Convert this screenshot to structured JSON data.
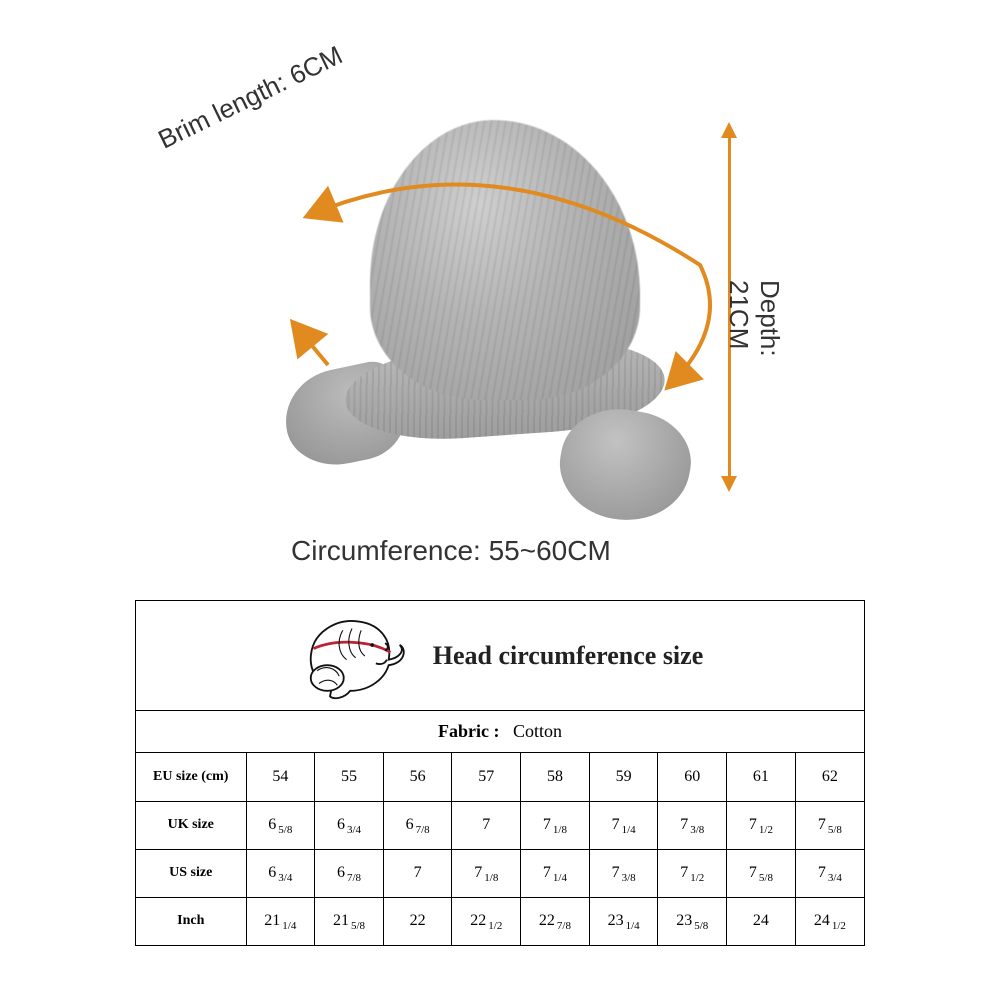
{
  "diagram": {
    "brim_label": "Brim length: 6CM",
    "depth_label": "Depth: 21CM",
    "circumference_label": "Circumference: 55~60CM",
    "arrow_color": "#e08a1f",
    "hat_color_light": "#cfcfcf",
    "hat_color_mid": "#b5b5b5",
    "hat_color_dark": "#9a9a9a",
    "label_color": "#333333",
    "label_fontsize": 26
  },
  "table": {
    "header_title": "Head circumference size",
    "fabric_label": "Fabric :",
    "fabric_value": "Cotton",
    "border_color": "#000000",
    "columns": [
      "54",
      "55",
      "56",
      "57",
      "58",
      "59",
      "60",
      "61",
      "62"
    ],
    "rows": [
      {
        "label": "EU size (cm)",
        "cells": [
          {
            "whole": "54"
          },
          {
            "whole": "55"
          },
          {
            "whole": "56"
          },
          {
            "whole": "57"
          },
          {
            "whole": "58"
          },
          {
            "whole": "59"
          },
          {
            "whole": "60"
          },
          {
            "whole": "61"
          },
          {
            "whole": "62"
          }
        ]
      },
      {
        "label": "UK size",
        "cells": [
          {
            "whole": "6",
            "frac": "5/8"
          },
          {
            "whole": "6",
            "frac": "3/4"
          },
          {
            "whole": "6",
            "frac": "7/8"
          },
          {
            "whole": "7"
          },
          {
            "whole": "7",
            "frac": "1/8"
          },
          {
            "whole": "7",
            "frac": "1/4"
          },
          {
            "whole": "7",
            "frac": "3/8"
          },
          {
            "whole": "7",
            "frac": "1/2"
          },
          {
            "whole": "7",
            "frac": "5/8"
          }
        ]
      },
      {
        "label": "US size",
        "cells": [
          {
            "whole": "6",
            "frac": "3/4"
          },
          {
            "whole": "6",
            "frac": "7/8"
          },
          {
            "whole": "7"
          },
          {
            "whole": "7",
            "frac": "1/8"
          },
          {
            "whole": "7",
            "frac": "1/4"
          },
          {
            "whole": "7",
            "frac": "3/8"
          },
          {
            "whole": "7",
            "frac": "1/2"
          },
          {
            "whole": "7",
            "frac": "5/8"
          },
          {
            "whole": "7",
            "frac": "3/4"
          }
        ]
      },
      {
        "label": "Inch",
        "cells": [
          {
            "whole": "21",
            "frac": "1/4"
          },
          {
            "whole": "21",
            "frac": "5/8"
          },
          {
            "whole": "22"
          },
          {
            "whole": "22",
            "frac": "1/2"
          },
          {
            "whole": "22",
            "frac": "7/8"
          },
          {
            "whole": "23",
            "frac": "1/4"
          },
          {
            "whole": "23",
            "frac": "5/8"
          },
          {
            "whole": "24"
          },
          {
            "whole": "24",
            "frac": "1/2"
          }
        ]
      }
    ]
  },
  "colors": {
    "background": "#ffffff",
    "text": "#333333",
    "accent": "#e08a1f"
  }
}
